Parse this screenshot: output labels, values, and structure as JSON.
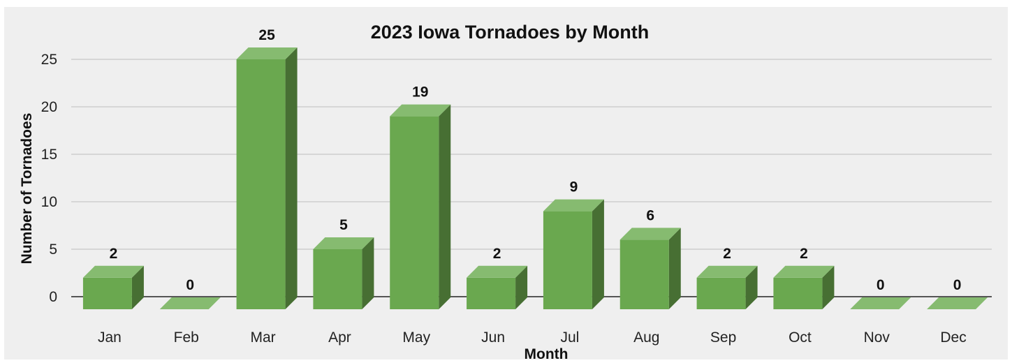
{
  "chart_data": {
    "type": "bar",
    "title": "2023 Iowa Tornadoes by Month",
    "xlabel": "Month",
    "ylabel": "Number of Tornadoes",
    "categories": [
      "Jan",
      "Feb",
      "Mar",
      "Apr",
      "May",
      "Jun",
      "Jul",
      "Aug",
      "Sep",
      "Oct",
      "Nov",
      "Dec"
    ],
    "values": [
      2,
      0,
      25,
      5,
      19,
      2,
      9,
      6,
      2,
      2,
      0,
      0
    ],
    "yticks": [
      0,
      5,
      10,
      15,
      20,
      25
    ],
    "ylim": [
      0,
      25
    ],
    "grid": true,
    "legend": "none",
    "style": "3d-column",
    "colors": {
      "bar_front": "#6aa84f",
      "bar_top": "#86bb70",
      "bar_side": "#476f33",
      "background": "#efefef"
    }
  }
}
